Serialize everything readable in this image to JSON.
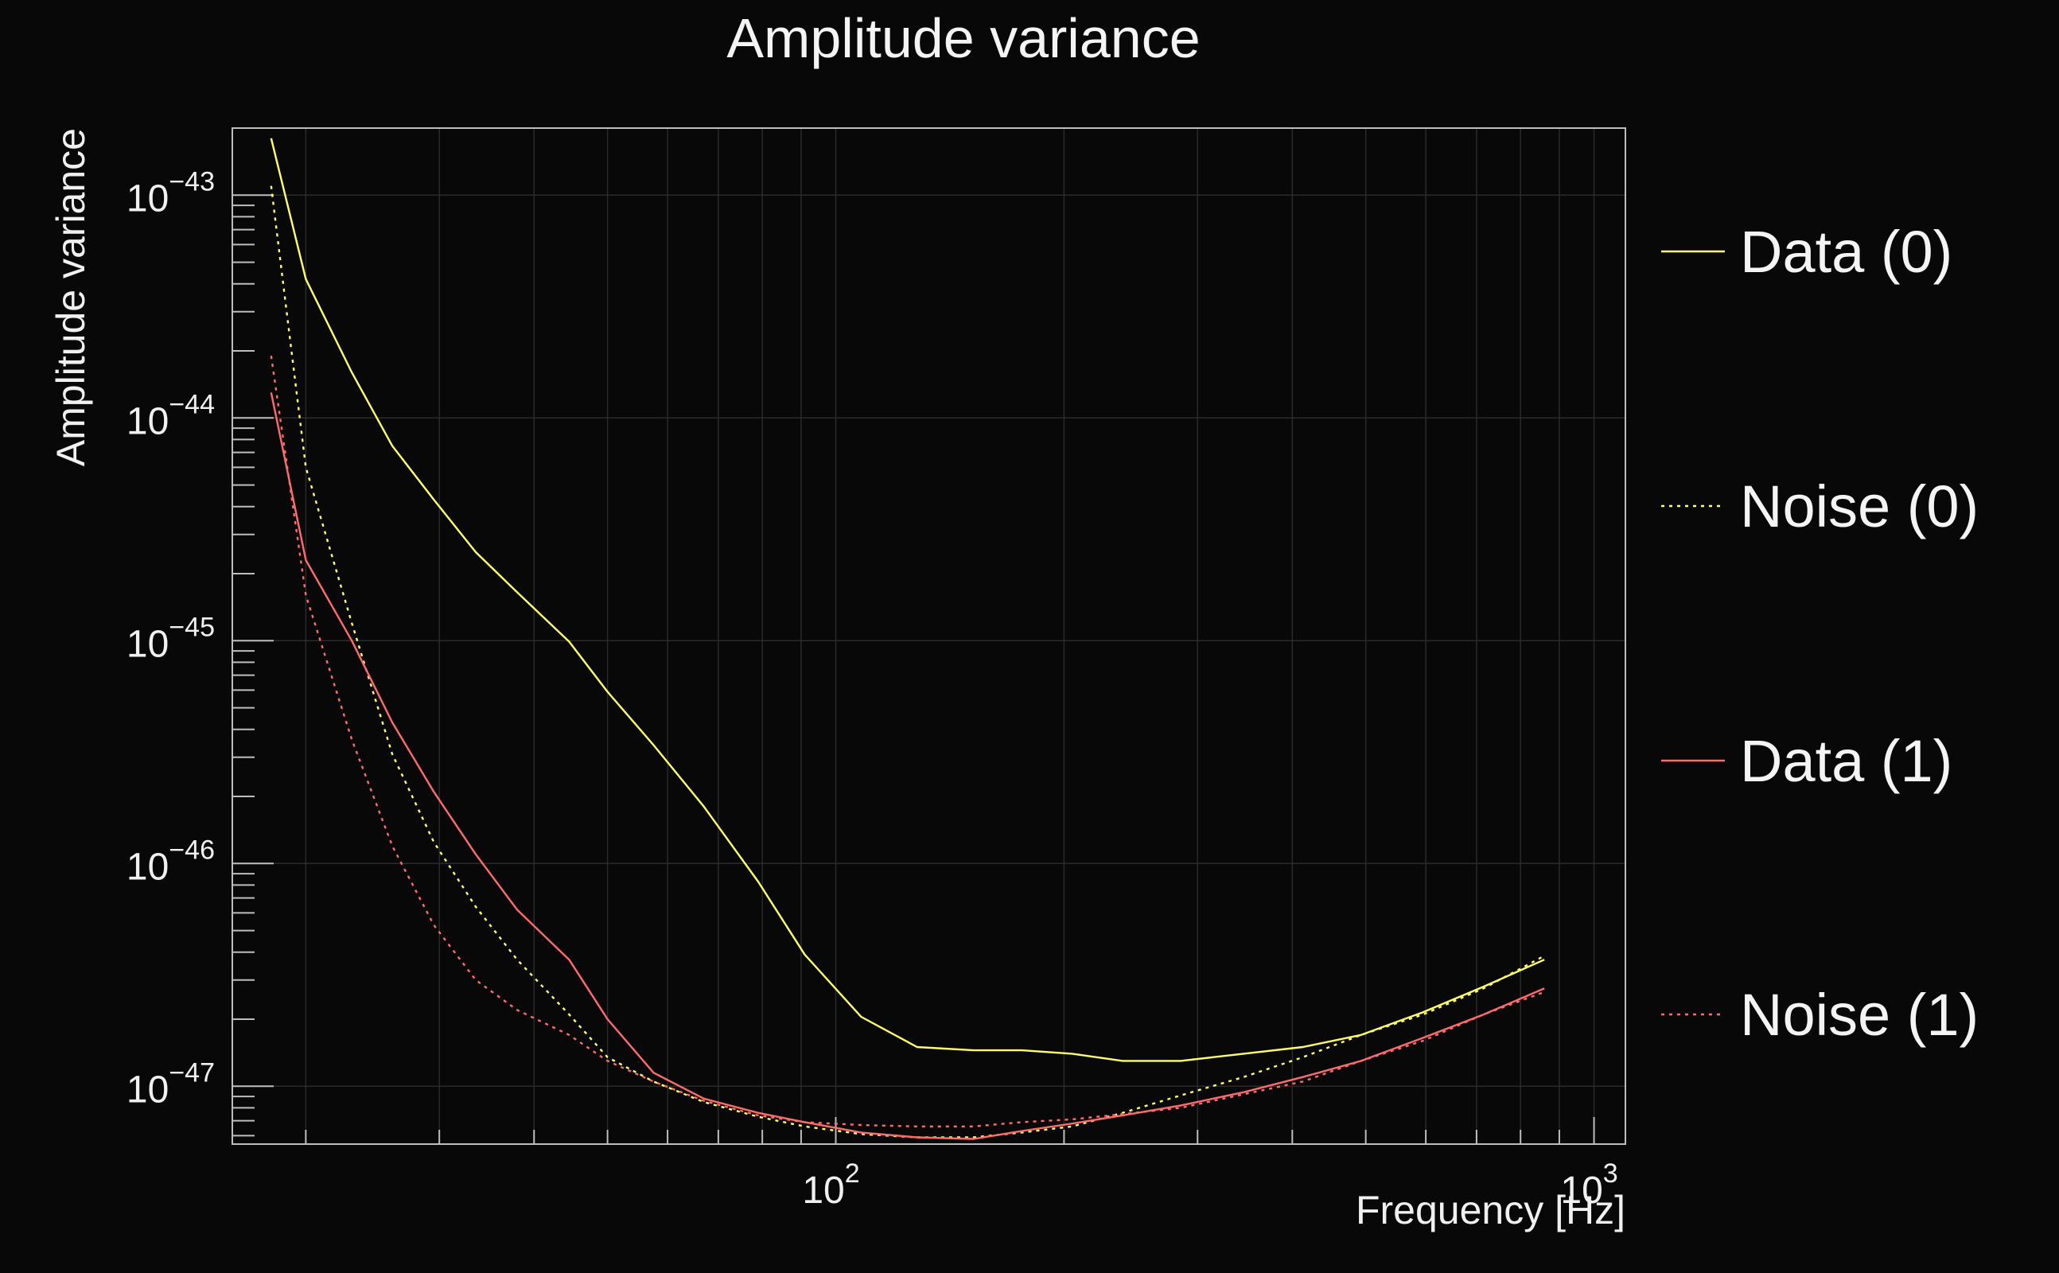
{
  "chart_data": {
    "type": "line",
    "title": "Amplitude variance",
    "xlabel": "Frequency [Hz]",
    "ylabel": "Amplitude variance",
    "xscale": "log",
    "yscale": "log",
    "xlim": [
      16,
      1100
    ],
    "ylim": [
      5.5e-48,
      2e-43
    ],
    "grid": true,
    "legend_position": "right",
    "x_ticks": [
      {
        "value": 100,
        "base": "10",
        "exp": "2"
      },
      {
        "value": 1000,
        "base": "10",
        "exp": "3"
      }
    ],
    "y_ticks": [
      {
        "value": 1e-43,
        "base": "10",
        "exp": "−43"
      },
      {
        "value": 1e-44,
        "base": "10",
        "exp": "−44"
      },
      {
        "value": 1e-45,
        "base": "10",
        "exp": "−45"
      },
      {
        "value": 1e-46,
        "base": "10",
        "exp": "−46"
      },
      {
        "value": 1e-47,
        "base": "10",
        "exp": "−47"
      }
    ],
    "series": [
      {
        "name": "Data (0)",
        "color": "#ffff66",
        "dash": "solid",
        "points": [
          [
            18,
            1.8e-43
          ],
          [
            20,
            4.2e-44
          ],
          [
            23,
            1.6e-44
          ],
          [
            26,
            7.5e-45
          ],
          [
            29.5,
            4.3e-45
          ],
          [
            33.5,
            2.5e-45
          ],
          [
            38,
            1.65e-45
          ],
          [
            44.5,
            9.9e-46
          ],
          [
            50,
            5.9e-46
          ],
          [
            57.5,
            3.4e-46
          ],
          [
            67,
            1.8e-46
          ],
          [
            79,
            8.3e-47
          ],
          [
            91,
            3.9e-47
          ],
          [
            108,
            2.05e-47
          ],
          [
            128,
            1.5e-47
          ],
          [
            152,
            1.45e-47
          ],
          [
            176,
            1.45e-47
          ],
          [
            205,
            1.4e-47
          ],
          [
            239,
            1.3e-47
          ],
          [
            285,
            1.3e-47
          ],
          [
            345,
            1.4e-47
          ],
          [
            413,
            1.5e-47
          ],
          [
            493,
            1.7e-47
          ],
          [
            595,
            2.15e-47
          ],
          [
            715,
            2.8e-47
          ],
          [
            860,
            3.7e-47
          ]
        ]
      },
      {
        "name": "Noise (0)",
        "color": "#ffff66",
        "dash": "dotted",
        "points": [
          [
            18,
            1.1e-43
          ],
          [
            20,
            6e-45
          ],
          [
            23,
            1.2e-45
          ],
          [
            26,
            3.1e-46
          ],
          [
            29.5,
            1.25e-46
          ],
          [
            33.5,
            6.4e-47
          ],
          [
            38,
            3.7e-47
          ],
          [
            44.5,
            2.1e-47
          ],
          [
            50,
            1.35e-47
          ],
          [
            57.5,
            1.05e-47
          ],
          [
            67,
            8.5e-48
          ],
          [
            79,
            7.3e-48
          ],
          [
            91,
            6.6e-48
          ],
          [
            108,
            6.1e-48
          ],
          [
            128,
            5.9e-48
          ],
          [
            152,
            5.9e-48
          ],
          [
            176,
            6.2e-48
          ],
          [
            205,
            6.6e-48
          ],
          [
            239,
            7.6e-48
          ],
          [
            285,
            9.1e-48
          ],
          [
            345,
            1.1e-47
          ],
          [
            413,
            1.35e-47
          ],
          [
            493,
            1.7e-47
          ],
          [
            595,
            2.1e-47
          ],
          [
            715,
            2.75e-47
          ],
          [
            860,
            3.85e-47
          ]
        ]
      },
      {
        "name": "Data (1)",
        "color": "#ff6b6b",
        "dash": "solid",
        "points": [
          [
            18,
            1.3e-44
          ],
          [
            20,
            2.3e-45
          ],
          [
            23,
            1e-45
          ],
          [
            26,
            4.3e-46
          ],
          [
            29.5,
            2.1e-46
          ],
          [
            33.5,
            1.1e-46
          ],
          [
            38,
            6.2e-47
          ],
          [
            44.5,
            3.7e-47
          ],
          [
            50,
            2e-47
          ],
          [
            57.5,
            1.15e-47
          ],
          [
            67,
            8.8e-48
          ],
          [
            79,
            7.6e-48
          ],
          [
            91,
            6.9e-48
          ],
          [
            108,
            6.2e-48
          ],
          [
            128,
            5.9e-48
          ],
          [
            152,
            5.8e-48
          ],
          [
            176,
            6.3e-48
          ],
          [
            205,
            6.8e-48
          ],
          [
            239,
            7.4e-48
          ],
          [
            285,
            8.2e-48
          ],
          [
            345,
            9.4e-48
          ],
          [
            413,
            1.1e-47
          ],
          [
            493,
            1.3e-47
          ],
          [
            595,
            1.65e-47
          ],
          [
            715,
            2.1e-47
          ],
          [
            860,
            2.75e-47
          ]
        ]
      },
      {
        "name": "Noise (1)",
        "color": "#ff6b6b",
        "dash": "dotted",
        "points": [
          [
            18,
            1.9e-44
          ],
          [
            20,
            1.6e-45
          ],
          [
            23,
            3.6e-46
          ],
          [
            26,
            1.2e-46
          ],
          [
            29.5,
            5.3e-47
          ],
          [
            33.5,
            3e-47
          ],
          [
            38,
            2.2e-47
          ],
          [
            44.5,
            1.7e-47
          ],
          [
            50,
            1.3e-47
          ],
          [
            57.5,
            1.05e-47
          ],
          [
            67,
            8.6e-48
          ],
          [
            79,
            7.4e-48
          ],
          [
            91,
            6.9e-48
          ],
          [
            108,
            6.7e-48
          ],
          [
            128,
            6.6e-48
          ],
          [
            152,
            6.6e-48
          ],
          [
            176,
            6.9e-48
          ],
          [
            205,
            7.1e-48
          ],
          [
            239,
            7.5e-48
          ],
          [
            285,
            8e-48
          ],
          [
            345,
            9.2e-48
          ],
          [
            413,
            1.05e-47
          ],
          [
            493,
            1.3e-47
          ],
          [
            595,
            1.6e-47
          ],
          [
            715,
            2.1e-47
          ],
          [
            860,
            2.65e-47
          ]
        ]
      }
    ]
  }
}
